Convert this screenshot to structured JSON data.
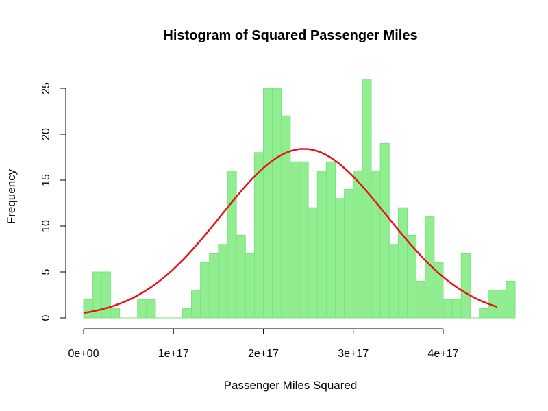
{
  "chart_data": {
    "type": "histogram",
    "title": "Histogram of Squared Passenger Miles",
    "xlabel": "Passenger Miles Squared",
    "ylabel": "Frequency",
    "bin_width": 1e+16,
    "bin_start": 0,
    "counts": [
      2,
      5,
      5,
      1,
      0,
      0,
      2,
      2,
      0,
      0,
      0,
      1,
      3,
      6,
      7,
      8,
      16,
      9,
      7,
      18,
      25,
      25,
      22,
      17,
      17,
      12,
      16,
      17,
      13,
      14,
      16,
      26,
      16,
      19,
      8,
      12,
      9,
      4,
      11,
      6,
      2,
      2,
      7,
      0,
      1,
      3,
      3,
      4
    ],
    "xlim": [
      0,
      4.6e+17
    ],
    "ylim": [
      0,
      26
    ],
    "x_ticks": [
      0,
      1e+17,
      2e+17,
      3e+17,
      4e+17
    ],
    "x_tick_labels": [
      "0e+00",
      "1e+17",
      "2e+17",
      "3e+17",
      "4e+17"
    ],
    "y_ticks": [
      0,
      5,
      10,
      15,
      20,
      25
    ],
    "y_tick_labels": [
      "0",
      "5",
      "10",
      "15",
      "20",
      "25"
    ],
    "density_curve": {
      "type": "normal",
      "mean": 2.45e+17,
      "sd": 9.2e+16,
      "peak_frequency": 18.4
    },
    "colors": {
      "bar_fill": "#90ee90",
      "bar_stroke": "#7fe07f",
      "curve": "#e8121a",
      "axis": "#000000"
    },
    "grid": false,
    "legend": "none"
  }
}
